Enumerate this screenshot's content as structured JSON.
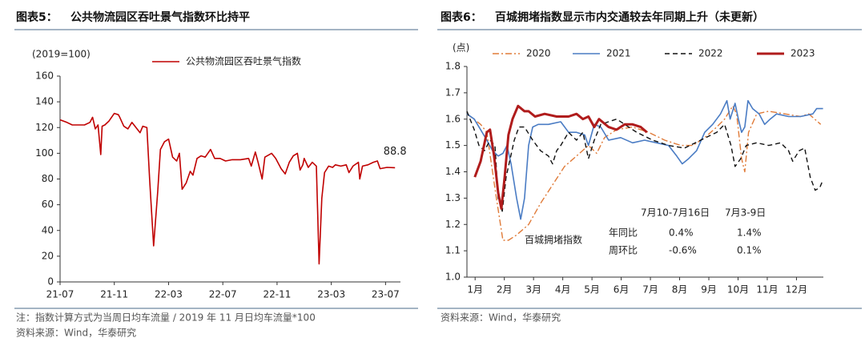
{
  "panels": [
    {
      "figure_label": "图表5：",
      "title": "公共物流园区吞吐景气指数环比持平",
      "chart_data": {
        "type": "line",
        "y_label": "(2019=100)",
        "xlim": [
          0,
          25.1
        ],
        "xticks": [
          {
            "value": 0,
            "label": "21-07"
          },
          {
            "value": 4,
            "label": "21-11"
          },
          {
            "value": 8,
            "label": "22-03"
          },
          {
            "value": 12,
            "label": "22-07"
          },
          {
            "value": 16,
            "label": "22-11"
          },
          {
            "value": 20,
            "label": "23-03"
          },
          {
            "value": 24,
            "label": "23-07"
          }
        ],
        "ylim": [
          0,
          160
        ],
        "yticks": [
          0,
          20,
          40,
          60,
          80,
          100,
          120,
          140,
          160
        ],
        "series": [
          {
            "name": "公共物流园区吞吐景气指数",
            "color": "#c00000",
            "linestyle": "solid",
            "linewidth": 1.6,
            "x": [
              0,
              0.5,
              0.9,
              1.5,
              1.8,
              2.2,
              2.4,
              2.6,
              2.8,
              3.0,
              3.1,
              3.3,
              3.6,
              4.0,
              4.3,
              4.4,
              4.7,
              5.0,
              5.3,
              5.6,
              5.9,
              6.1,
              6.4,
              6.6,
              6.9,
              7.2,
              7.4,
              7.7,
              8.0,
              8.3,
              8.6,
              8.8,
              9.0,
              9.3,
              9.6,
              9.8,
              10.1,
              10.4,
              10.7,
              11.1,
              11.4,
              11.8,
              12.2,
              12.7,
              13.3,
              13.9,
              14.1,
              14.4,
              14.6,
              14.9,
              15.1,
              15.6,
              15.9,
              16.3,
              16.6,
              16.9,
              17.2,
              17.5,
              17.7,
              17.9,
              18.0,
              18.3,
              18.6,
              18.9,
              19.1,
              19.3,
              19.5,
              19.8,
              20.1,
              20.3,
              20.7,
              21.1,
              21.3,
              21.6,
              22.0,
              22.1,
              22.3,
              22.7,
              23.1,
              23.4,
              23.6,
              24.1,
              24.7
            ],
            "values": [
              126,
              124,
              122,
              122,
              122,
              124,
              128,
              119,
              122,
              99,
              121,
              122,
              125,
              131,
              130,
              128,
              121,
              119,
              124,
              120,
              116,
              121,
              120,
              80,
              28,
              70,
              103,
              109,
              111,
              97,
              94,
              100,
              72,
              77,
              86,
              83,
              96,
              98,
              97,
              103,
              96,
              96,
              94,
              95,
              95,
              96,
              90,
              101,
              93,
              80,
              97,
              100,
              96,
              88,
              84,
              93,
              98,
              100,
              87,
              91,
              96,
              89,
              93,
              90,
              14,
              65,
              85,
              90,
              89,
              91,
              90,
              91,
              85,
              90,
              93,
              80,
              90,
              91,
              93,
              94,
              88,
              89,
              88.8
            ],
            "labeled_point": 82
          }
        ]
      },
      "notes": [
        "注：指数计算方式为当周日均车流量 / 2019 年 11 月日均车流量*100",
        "资料来源：Wind，华泰研究"
      ]
    },
    {
      "figure_label": "图表6：",
      "title": "百城拥堵指数显示市内交通较去年同期上升（未更新）",
      "chart_data": {
        "type": "line",
        "y_label": "(点)",
        "xlim": [
          0,
          12.2
        ],
        "xticks": [
          {
            "value": 0.28,
            "label": "1月"
          },
          {
            "value": 1.28,
            "label": "2月"
          },
          {
            "value": 2.28,
            "label": "3月"
          },
          {
            "value": 3.28,
            "label": "4月"
          },
          {
            "value": 4.28,
            "label": "5月"
          },
          {
            "value": 5.28,
            "label": "6月"
          },
          {
            "value": 6.28,
            "label": "7月"
          },
          {
            "value": 7.28,
            "label": "8月"
          },
          {
            "value": 8.28,
            "label": "9月"
          },
          {
            "value": 9.28,
            "label": "10月"
          },
          {
            "value": 10.28,
            "label": "11月"
          },
          {
            "value": 11.28,
            "label": "12月"
          }
        ],
        "ylim": [
          1.0,
          1.8
        ],
        "yticks": [
          {
            "value": 1.0,
            "label": "1.0"
          },
          1.1,
          1.2,
          1.3,
          1.4,
          1.5,
          1.6,
          1.7,
          1.8
        ],
        "series": [
          {
            "name": "2020",
            "color": "#e07b39",
            "linestyle": "dashdot",
            "linewidth": 1.4,
            "x": [
              0,
              0.47,
              0.68,
              0.85,
              1.01,
              1.23,
              1.42,
              1.7,
              2.11,
              2.52,
              2.93,
              3.34,
              3.75,
              4.16,
              4.44,
              4.71,
              5.12,
              5.67,
              6.22,
              6.77,
              7.32,
              7.73,
              8.14,
              8.55,
              8.82,
              9.1,
              9.23,
              9.4,
              9.51,
              9.64,
              9.92,
              10.33,
              10.88,
              11.42,
              11.7,
              12.11
            ],
            "values": [
              1.62,
              1.58,
              1.55,
              1.42,
              1.3,
              1.14,
              1.14,
              1.16,
              1.2,
              1.28,
              1.35,
              1.42,
              1.46,
              1.5,
              1.47,
              1.53,
              1.56,
              1.57,
              1.55,
              1.52,
              1.5,
              1.5,
              1.53,
              1.57,
              1.6,
              1.65,
              1.62,
              1.45,
              1.4,
              1.55,
              1.62,
              1.63,
              1.62,
              1.61,
              1.62,
              1.58
            ]
          },
          {
            "name": "2021",
            "color": "#4a7cc4",
            "linestyle": "solid",
            "linewidth": 1.6,
            "x": [
              0,
              0.25,
              0.47,
              0.68,
              0.88,
              1.07,
              1.23,
              1.37,
              1.51,
              1.7,
              1.84,
              1.97,
              2.11,
              2.25,
              2.44,
              2.79,
              3.21,
              3.48,
              3.75,
              4.03,
              4.16,
              4.36,
              4.58,
              4.85,
              5.26,
              5.67,
              6.08,
              6.49,
              6.9,
              7.18,
              7.37,
              7.59,
              7.86,
              8.14,
              8.41,
              8.68,
              8.9,
              9.01,
              9.18,
              9.29,
              9.4,
              9.51,
              9.62,
              9.78,
              10.0,
              10.19,
              10.38,
              10.6,
              11.01,
              11.42,
              11.84,
              11.97,
              12.19
            ],
            "values": [
              1.62,
              1.6,
              1.56,
              1.52,
              1.48,
              1.46,
              1.47,
              1.5,
              1.43,
              1.3,
              1.22,
              1.3,
              1.5,
              1.57,
              1.58,
              1.58,
              1.59,
              1.55,
              1.55,
              1.54,
              1.5,
              1.58,
              1.57,
              1.52,
              1.53,
              1.51,
              1.52,
              1.51,
              1.5,
              1.46,
              1.43,
              1.45,
              1.48,
              1.55,
              1.58,
              1.62,
              1.67,
              1.6,
              1.66,
              1.6,
              1.55,
              1.57,
              1.67,
              1.64,
              1.62,
              1.58,
              1.6,
              1.62,
              1.61,
              1.61,
              1.62,
              1.64,
              1.64
            ]
          },
          {
            "name": "2022",
            "color": "#111111",
            "linestyle": "dashed",
            "linewidth": 1.4,
            "x": [
              0,
              0.25,
              0.41,
              0.6,
              0.79,
              0.96,
              1.07,
              1.21,
              1.34,
              1.48,
              1.62,
              1.78,
              1.97,
              2.25,
              2.52,
              2.79,
              2.93,
              3.07,
              3.21,
              3.48,
              3.75,
              3.97,
              4.16,
              4.36,
              4.58,
              4.85,
              5.12,
              5.4,
              5.81,
              6.36,
              6.9,
              7.45,
              8.0,
              8.55,
              8.82,
              9.04,
              9.18,
              9.37,
              9.56,
              9.92,
              10.33,
              10.74,
              11.01,
              11.15,
              11.37,
              11.56,
              11.75,
              11.92,
              12.08,
              12.19
            ],
            "values": [
              1.63,
              1.56,
              1.5,
              1.48,
              1.52,
              1.5,
              1.3,
              1.25,
              1.38,
              1.45,
              1.52,
              1.57,
              1.57,
              1.52,
              1.48,
              1.46,
              1.43,
              1.48,
              1.5,
              1.55,
              1.52,
              1.55,
              1.45,
              1.52,
              1.58,
              1.59,
              1.6,
              1.58,
              1.55,
              1.52,
              1.5,
              1.49,
              1.52,
              1.55,
              1.58,
              1.5,
              1.42,
              1.45,
              1.5,
              1.51,
              1.5,
              1.51,
              1.48,
              1.44,
              1.48,
              1.49,
              1.38,
              1.33,
              1.34,
              1.37
            ]
          },
          {
            "name": "2023",
            "color": "#b01c1c",
            "linestyle": "solid",
            "linewidth": 3,
            "x": [
              0.27,
              0.47,
              0.68,
              0.79,
              0.93,
              1.07,
              1.18,
              1.29,
              1.42,
              1.56,
              1.75,
              1.97,
              2.11,
              2.33,
              2.66,
              3.07,
              3.48,
              3.75,
              3.97,
              4.16,
              4.36,
              4.52,
              4.85,
              5.12,
              5.4,
              5.67,
              5.95,
              6.16
            ],
            "values": [
              1.38,
              1.44,
              1.55,
              1.56,
              1.46,
              1.32,
              1.26,
              1.38,
              1.54,
              1.6,
              1.65,
              1.63,
              1.63,
              1.61,
              1.62,
              1.61,
              1.61,
              1.62,
              1.6,
              1.61,
              1.57,
              1.6,
              1.57,
              1.56,
              1.58,
              1.58,
              1.57,
              1.55
            ]
          }
        ],
        "annotation": "百城拥堵指数",
        "table": {
          "header": [
            "7月10-7月16日",
            "7月3-9日"
          ],
          "rows": [
            [
              "年同比",
              "0.4%",
              "1.4%"
            ],
            [
              "周环比",
              "-0.6%",
              "0.1%"
            ]
          ]
        }
      },
      "notes": [
        "资料来源：Wind，华泰研究"
      ]
    }
  ]
}
